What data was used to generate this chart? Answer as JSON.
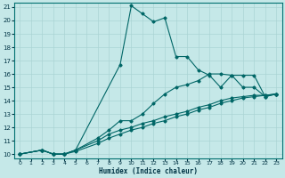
{
  "xlabel": "Humidex (Indice chaleur)",
  "bg_color": "#c5e8e8",
  "grid_color": "#aad4d4",
  "line_color": "#006666",
  "xlim": [
    0,
    23
  ],
  "ylim": [
    10,
    21
  ],
  "xticks": [
    0,
    1,
    2,
    3,
    4,
    5,
    6,
    7,
    8,
    9,
    10,
    11,
    12,
    13,
    14,
    15,
    16,
    17,
    18,
    19,
    20,
    21,
    22,
    23
  ],
  "yticks": [
    10,
    11,
    12,
    13,
    14,
    15,
    16,
    17,
    18,
    19,
    20,
    21
  ],
  "lines": [
    {
      "x": [
        0,
        2,
        3,
        4,
        5,
        9,
        10,
        11,
        12,
        13,
        14,
        15,
        16,
        17,
        18,
        19,
        20,
        21,
        22,
        23
      ],
      "y": [
        10,
        10.3,
        10.0,
        10.0,
        10.3,
        16.7,
        21.1,
        20.5,
        19.9,
        20.2,
        17.3,
        17.3,
        16.3,
        15.9,
        15.0,
        15.9,
        15.9,
        15.9,
        14.3,
        14.5
      ]
    },
    {
      "x": [
        0,
        2,
        3,
        4,
        5,
        7,
        8,
        9,
        10,
        11,
        12,
        13,
        14,
        15,
        16,
        17,
        18,
        19,
        20,
        21,
        22,
        23
      ],
      "y": [
        10,
        10.3,
        10.0,
        10.0,
        10.3,
        11.2,
        11.8,
        12.5,
        12.5,
        13.0,
        13.8,
        14.5,
        15.0,
        15.2,
        15.5,
        16.0,
        16.0,
        15.9,
        15.0,
        15.0,
        14.3,
        14.5
      ]
    },
    {
      "x": [
        0,
        2,
        3,
        4,
        5,
        7,
        8,
        9,
        10,
        11,
        12,
        13,
        14,
        15,
        16,
        17,
        18,
        19,
        20,
        21,
        22,
        23
      ],
      "y": [
        10,
        10.3,
        10.0,
        10.0,
        10.3,
        11.0,
        11.5,
        11.8,
        12.0,
        12.3,
        12.5,
        12.8,
        13.0,
        13.2,
        13.5,
        13.7,
        14.0,
        14.2,
        14.3,
        14.4,
        14.4,
        14.5
      ]
    },
    {
      "x": [
        0,
        2,
        3,
        4,
        5,
        7,
        8,
        9,
        10,
        11,
        12,
        13,
        14,
        15,
        16,
        17,
        18,
        19,
        20,
        21,
        22,
        23
      ],
      "y": [
        10,
        10.3,
        10.0,
        10.0,
        10.2,
        10.8,
        11.2,
        11.5,
        11.8,
        12.0,
        12.3,
        12.5,
        12.8,
        13.0,
        13.3,
        13.5,
        13.8,
        14.0,
        14.2,
        14.3,
        14.4,
        14.5
      ]
    }
  ]
}
